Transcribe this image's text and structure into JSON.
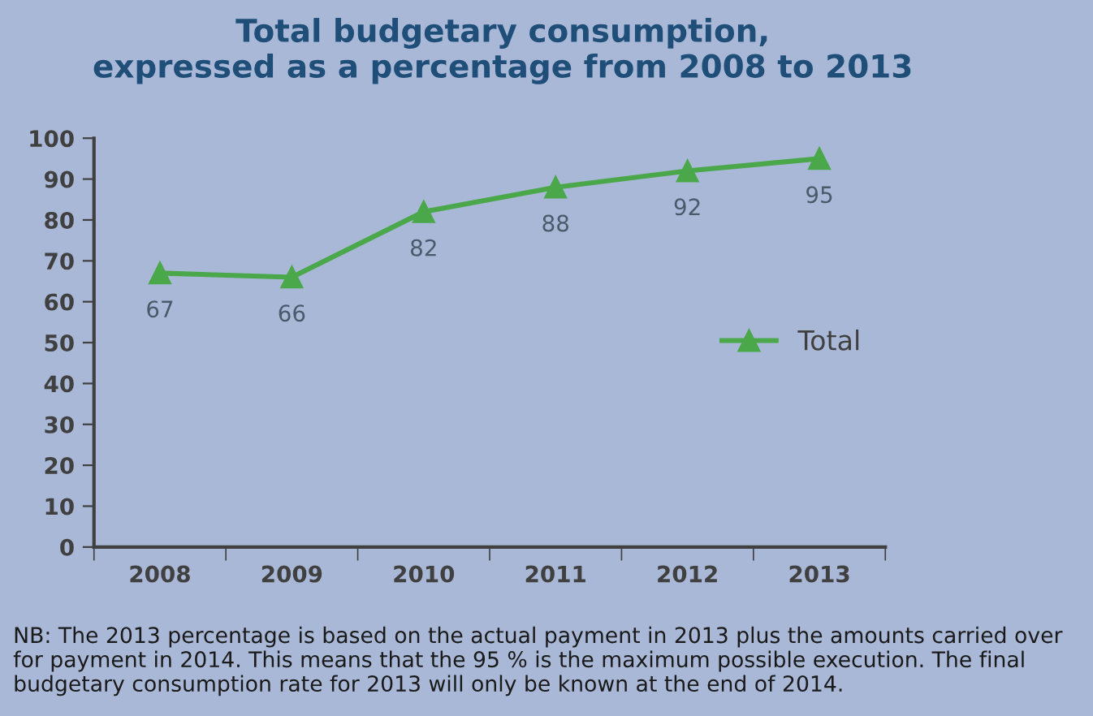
{
  "chart_data": {
    "type": "line",
    "title": "Total budgetary consumption,\nexpressed as a percentage from 2008 to 2013",
    "categories": [
      "2008",
      "2009",
      "2010",
      "2011",
      "2012",
      "2013"
    ],
    "series": [
      {
        "name": "Total",
        "color": "#4aa84a",
        "values": [
          67,
          66,
          82,
          88,
          92,
          95
        ]
      }
    ],
    "ylim": [
      0,
      100
    ],
    "yticks": [
      0,
      10,
      20,
      30,
      40,
      50,
      60,
      70,
      80,
      90,
      100
    ],
    "data_labels": true,
    "marker": "triangle",
    "line_style": "solid",
    "grid": false,
    "legend": "center right",
    "annotations": [
      "NB: The 2013 percentage is based on the actual payment in 2013 plus the amounts carried over for payment in 2014. This means that the 95 % is the maximum possible execution. The final budgetary consumption rate for 2013 will only be known at the end of 2014."
    ]
  }
}
